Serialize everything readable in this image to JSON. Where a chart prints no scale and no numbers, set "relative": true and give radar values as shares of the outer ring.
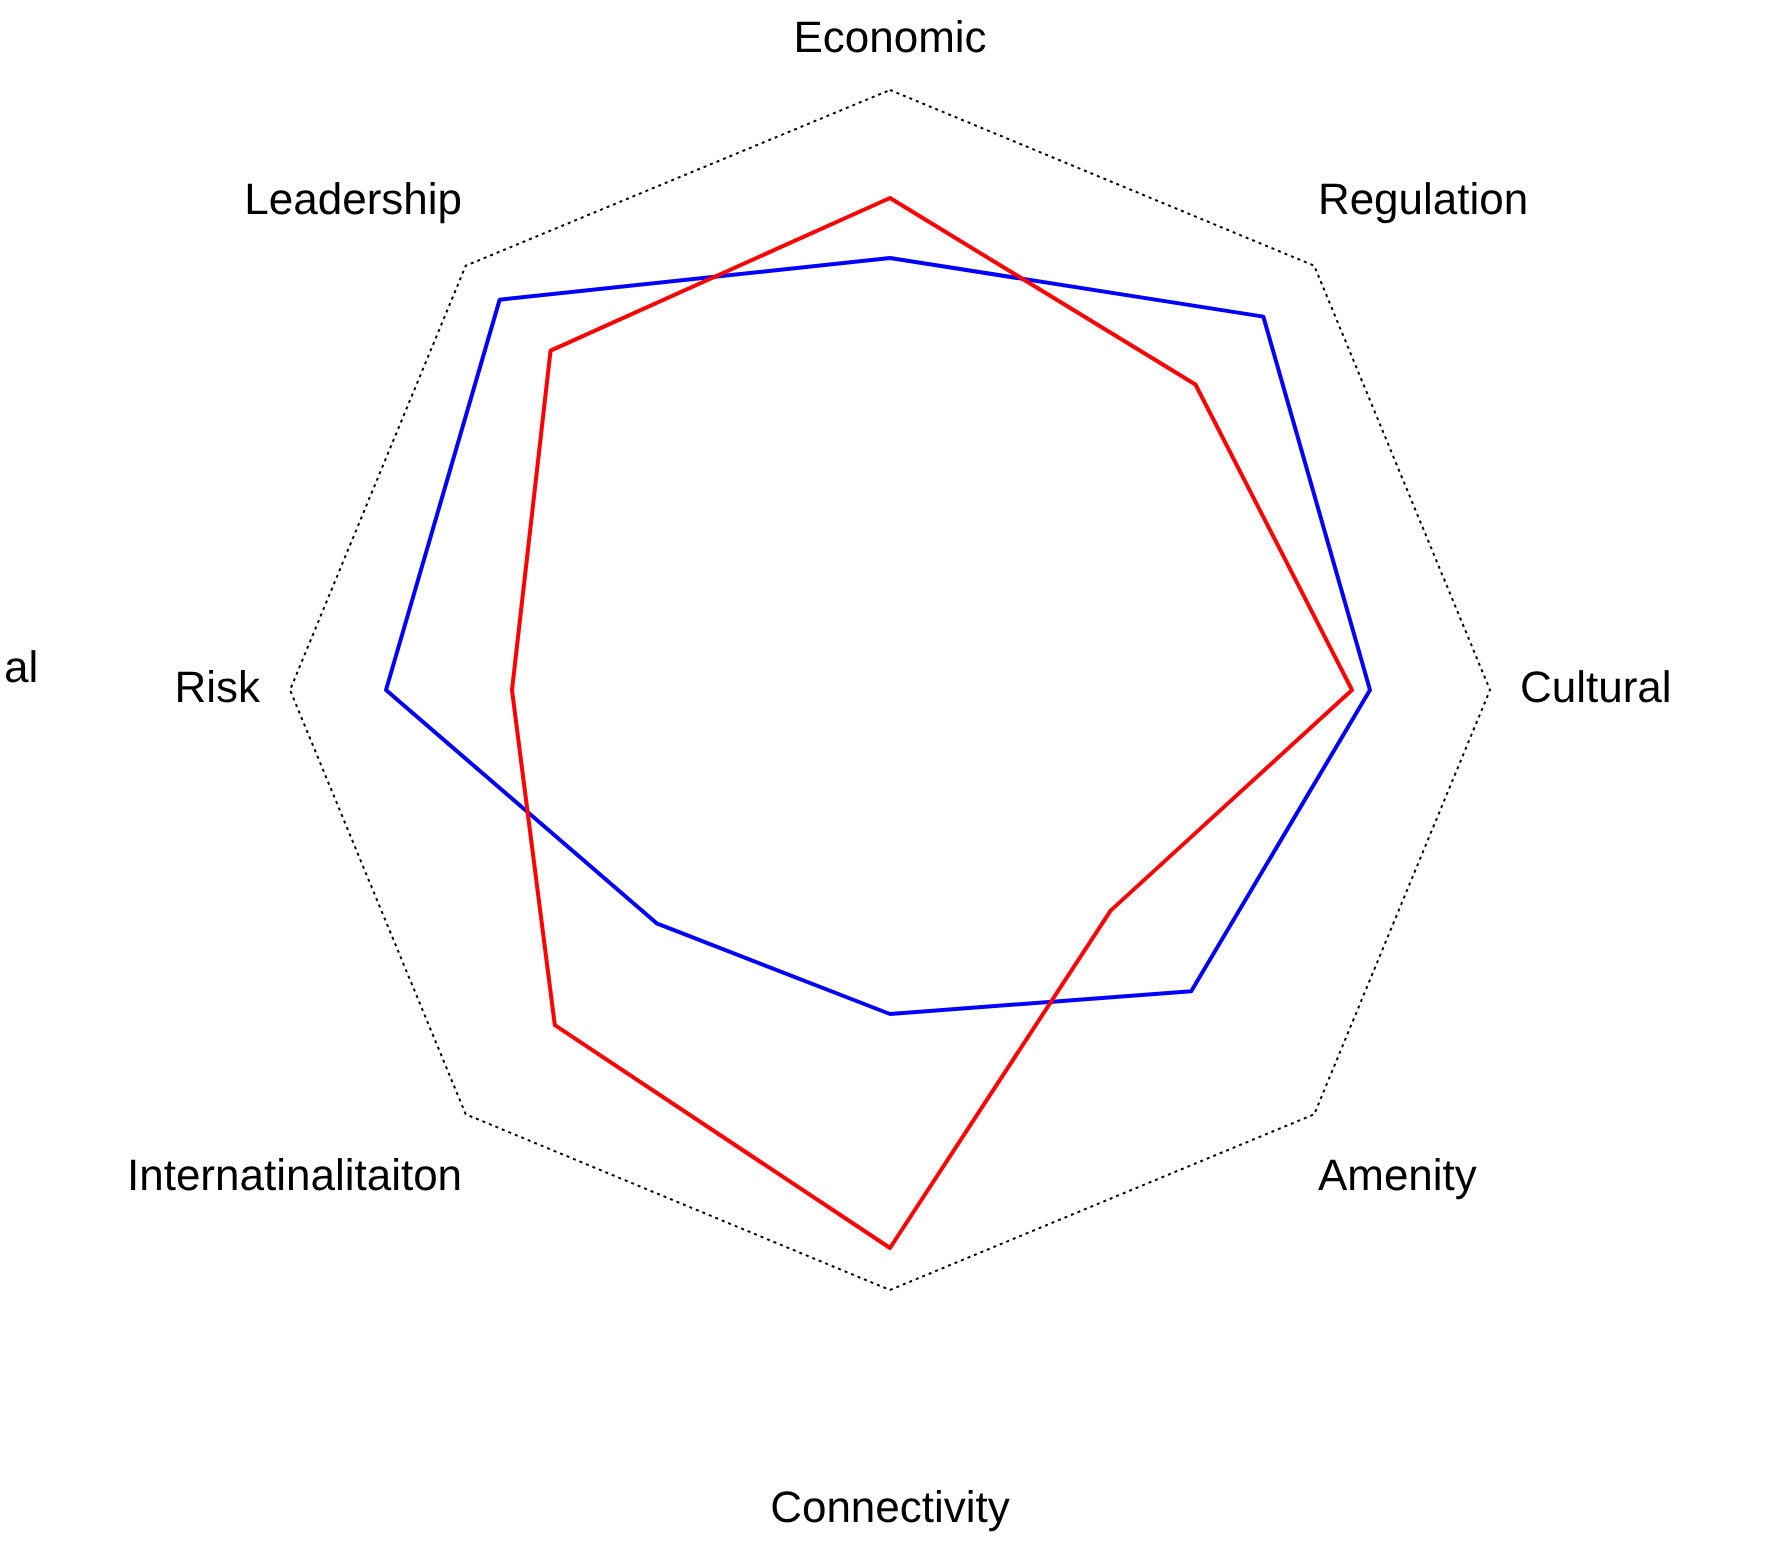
{
  "chart_data": {
    "type": "radar",
    "relative": true,
    "categories": [
      "Economic",
      "Regulation",
      "Cultural",
      "Amenity",
      "Connectivity",
      "Internatinalitaiton",
      "Risk",
      "Leadership"
    ],
    "series": [
      {
        "color": "#0000ff",
        "values": [
          0.72,
          0.88,
          0.8,
          0.71,
          0.54,
          0.55,
          0.84,
          0.92
        ]
      },
      {
        "color": "#ff0000",
        "values": [
          0.82,
          0.72,
          0.77,
          0.52,
          0.93,
          0.79,
          0.63,
          0.8
        ]
      }
    ],
    "annotations": [
      "al"
    ],
    "grid": true
  }
}
